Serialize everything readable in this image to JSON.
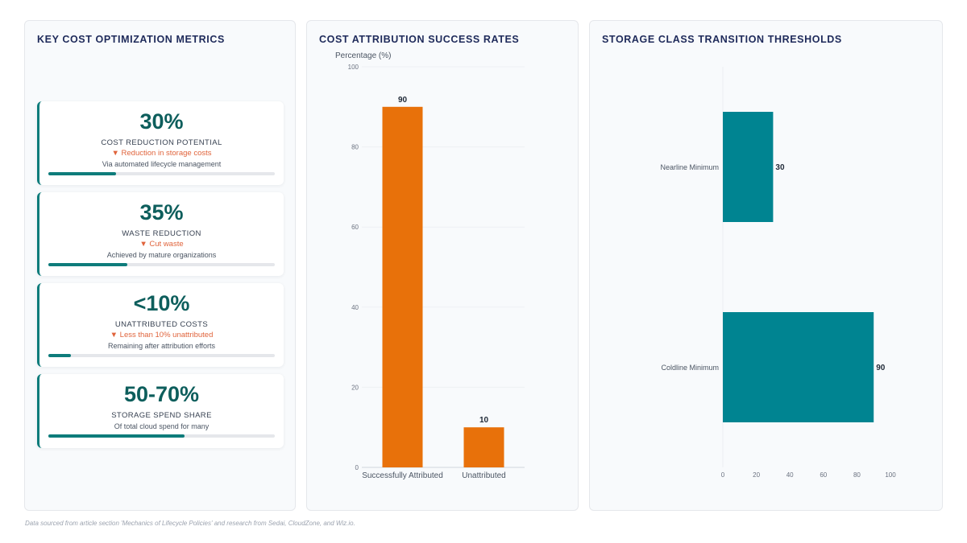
{
  "metrics_panel": {
    "title": "KEY COST OPTIMIZATION METRICS",
    "cards": [
      {
        "value": "30%",
        "label": "COST REDUCTION POTENTIAL",
        "trend": "▼ Reduction in storage costs",
        "note": "Via automated lifecycle management",
        "progress": 0.3
      },
      {
        "value": "35%",
        "label": "WASTE REDUCTION",
        "trend": "▼ Cut waste",
        "note": "Achieved by mature organizations",
        "progress": 0.35
      },
      {
        "value": "<10%",
        "label": "UNATTRIBUTED COSTS",
        "trend": "▼ Less than 10% unattributed",
        "note": "Remaining after attribution efforts",
        "progress": 0.1
      },
      {
        "value": "50-70%",
        "label": "STORAGE SPEND SHARE",
        "trend": "",
        "note": "Of total cloud spend for many",
        "progress": 0.6
      }
    ]
  },
  "attribution_panel": {
    "title": "COST ATTRIBUTION SUCCESS RATES"
  },
  "thresholds_panel": {
    "title": "STORAGE CLASS TRANSITION THRESHOLDS"
  },
  "footer": {
    "text": "Data sourced from article section 'Mechanics of Lifecycle Policies' and research from Sedai, CloudZone, and Wiz.io."
  },
  "chart_data": [
    {
      "type": "bar",
      "title": "COST ATTRIBUTION SUCCESS RATES",
      "categories": [
        "Successfully Attributed",
        "Unattributed"
      ],
      "values": [
        90,
        10
      ],
      "xlabel": "",
      "ylabel": "Percentage (%)",
      "ylim": [
        0,
        100
      ],
      "yticks": [
        0,
        20,
        40,
        60,
        80,
        100
      ],
      "color": "#e8710a",
      "data_labels": true
    },
    {
      "type": "bar",
      "orientation": "horizontal",
      "title": "STORAGE CLASS TRANSITION THRESHOLDS",
      "categories": [
        "Nearline Minimum",
        "Coldline Minimum"
      ],
      "values": [
        30,
        90
      ],
      "xlabel": "",
      "ylabel": "",
      "xlim": [
        0,
        100
      ],
      "xticks": [
        0,
        20,
        40,
        60,
        80,
        100
      ],
      "color": "#008491",
      "data_labels": true
    }
  ]
}
